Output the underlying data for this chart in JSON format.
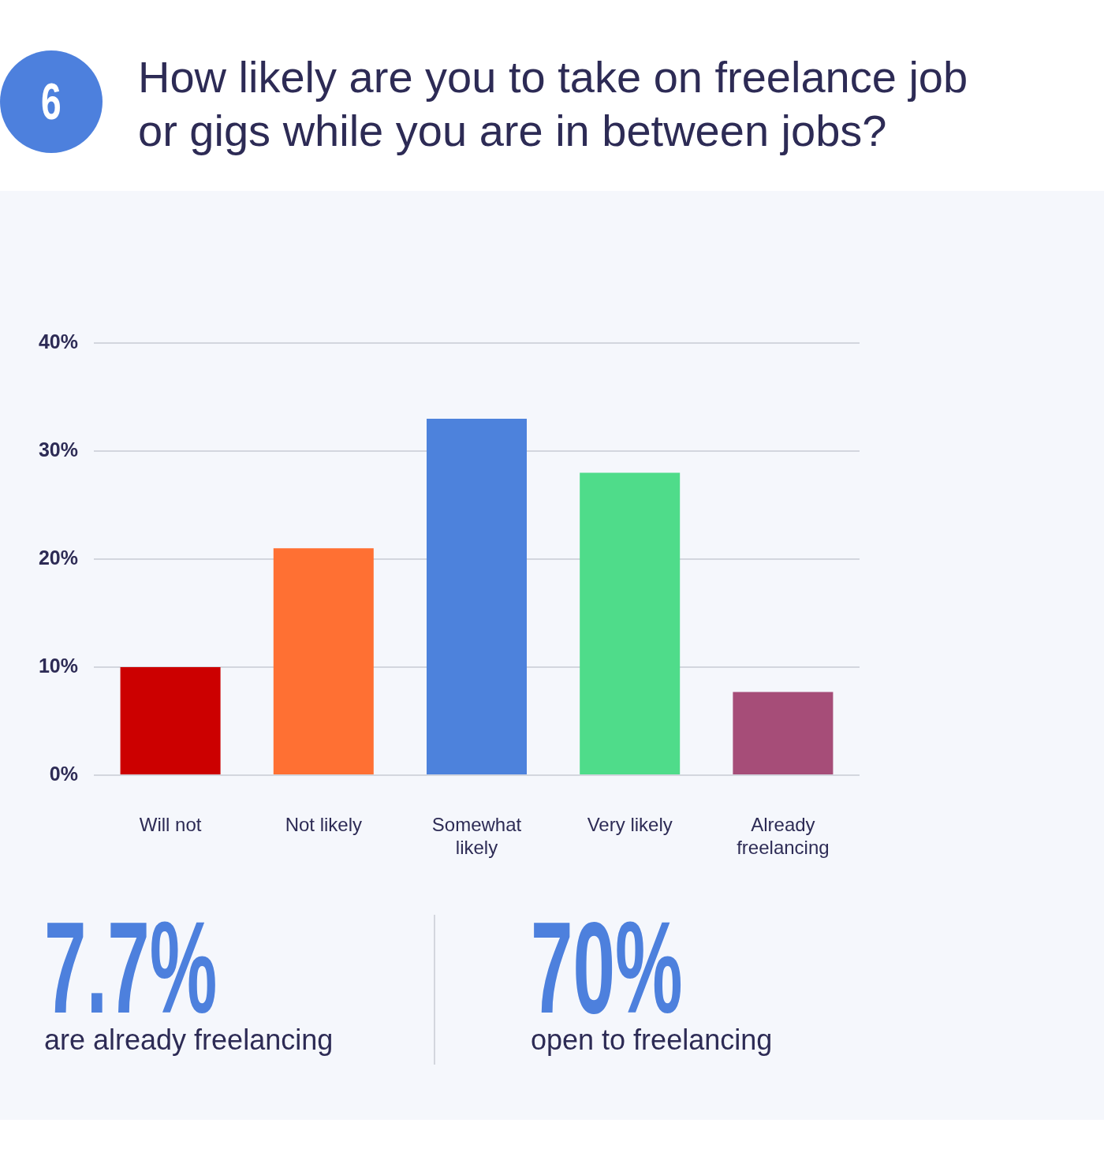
{
  "chart_data": {
    "type": "bar",
    "title": "How likely are you to take on freelance job or gigs while you are in between jobs?",
    "categories": [
      "Will not",
      "Not likely",
      "Somewhat likely",
      "Very likely",
      "Already freelancing"
    ],
    "values": [
      10,
      21,
      33,
      28,
      7.7
    ],
    "colors": [
      "#cc0000",
      "#ff7033",
      "#4d82dc",
      "#4fdc8a",
      "#a64d78"
    ],
    "ylim": [
      0,
      40
    ],
    "yticks": [
      {
        "value": 0,
        "label": "0%"
      },
      {
        "value": 10,
        "label": "10%"
      },
      {
        "value": 20,
        "label": "20%"
      },
      {
        "value": 30,
        "label": "30%"
      },
      {
        "value": 40,
        "label": "40%"
      }
    ],
    "grid": "y",
    "annotations": [
      "6",
      "7.7%",
      "are already freelancing",
      "70%",
      "open to freelancing"
    ]
  }
}
